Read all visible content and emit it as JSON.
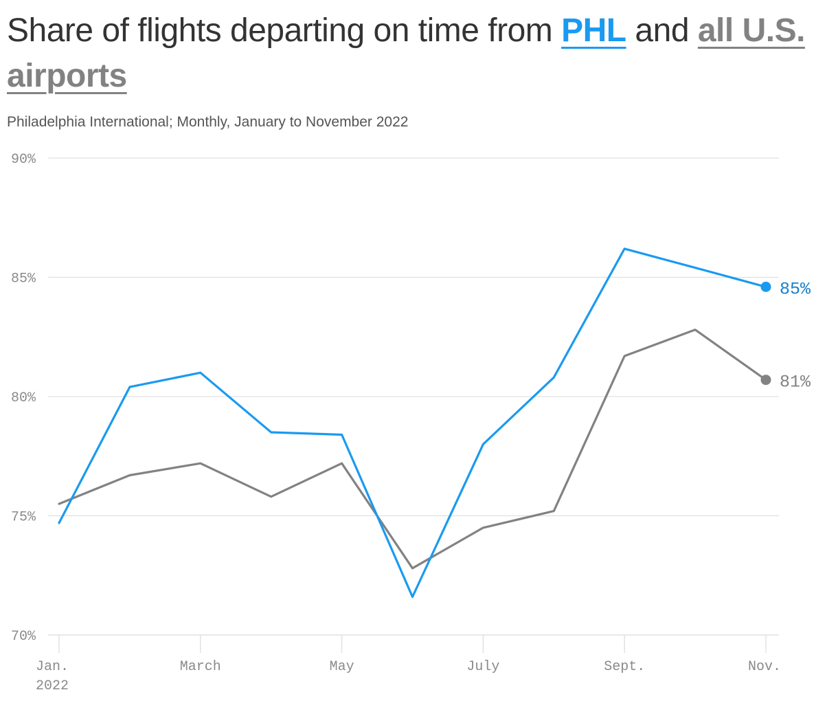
{
  "title": {
    "prefix": "Share of flights departing on time from ",
    "phl": "PHL",
    "middle": " and ",
    "us": "all U.S. airports"
  },
  "subtitle": "Philadelphia International; Monthly, January to November 2022",
  "colors": {
    "phl": "#1a9af0",
    "us": "#828282",
    "phl_label": "#1780cc",
    "grid": "#e0e0e0",
    "axis_text": "#8a8a8a"
  },
  "chart_data": {
    "type": "line",
    "x": [
      "2022-01",
      "2022-02",
      "2022-03",
      "2022-04",
      "2022-05",
      "2022-06",
      "2022-07",
      "2022-08",
      "2022-09",
      "2022-10",
      "2022-11"
    ],
    "x_tick_labels": [
      {
        "x": "2022-01",
        "lines": [
          "Jan.",
          "2022"
        ]
      },
      {
        "x": "2022-03",
        "lines": [
          "March"
        ]
      },
      {
        "x": "2022-05",
        "lines": [
          "May"
        ]
      },
      {
        "x": "2022-07",
        "lines": [
          "July"
        ]
      },
      {
        "x": "2022-09",
        "lines": [
          "Sept."
        ]
      },
      {
        "x": "2022-11",
        "lines": [
          "Nov."
        ]
      }
    ],
    "y_ticks": [
      70,
      75,
      80,
      85,
      90
    ],
    "y_tick_labels": [
      "70%",
      "75%",
      "80%",
      "85%",
      "90%"
    ],
    "ylim": [
      70,
      90
    ],
    "grid": true,
    "series": [
      {
        "name": "PHL",
        "values": [
          74.7,
          80.4,
          81.0,
          78.5,
          78.4,
          71.6,
          78.0,
          80.8,
          86.2,
          85.4,
          84.6
        ],
        "end_label": "85%"
      },
      {
        "name": "all U.S. airports",
        "values": [
          75.5,
          76.7,
          77.2,
          75.8,
          77.2,
          72.8,
          74.5,
          75.2,
          81.7,
          82.8,
          80.7
        ],
        "end_label": "81%"
      }
    ]
  }
}
